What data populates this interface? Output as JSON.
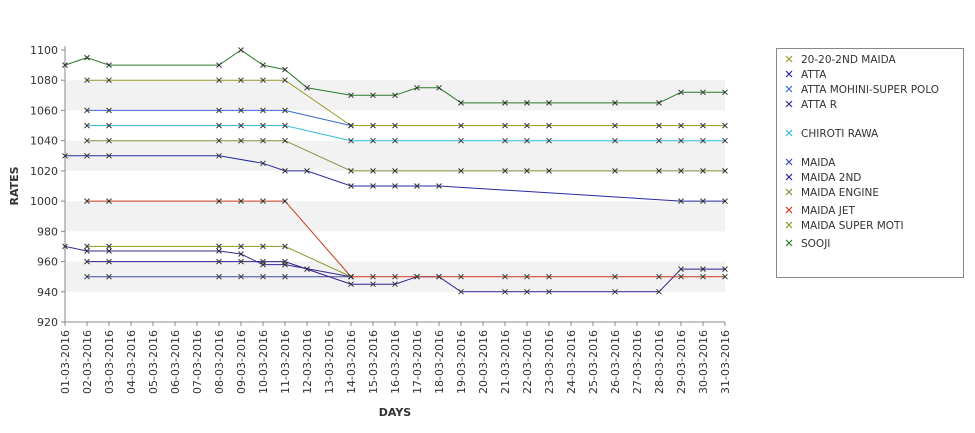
{
  "chart_data": {
    "type": "line",
    "title": "",
    "xlabel": "DAYS",
    "ylabel": "RATES",
    "ylim": [
      920,
      1100
    ],
    "yticks": [
      920,
      940,
      960,
      980,
      1000,
      1020,
      1040,
      1060,
      1080,
      1100
    ],
    "grid": "alternating horizontal bands",
    "legend_position": "right",
    "categories": [
      "01-03-2016",
      "02-03-2016",
      "03-03-2016",
      "04-03-2016",
      "05-03-2016",
      "06-03-2016",
      "07-03-2016",
      "08-03-2016",
      "09-03-2016",
      "10-03-2016",
      "11-03-2016",
      "12-03-2016",
      "13-03-2016",
      "14-03-2016",
      "15-03-2016",
      "16-03-2016",
      "17-03-2016",
      "18-03-2016",
      "19-03-2016",
      "20-03-2016",
      "21-03-2016",
      "22-03-2016",
      "23-03-2016",
      "24-03-2016",
      "25-03-2016",
      "26-03-2016",
      "27-03-2016",
      "28-03-2016",
      "29-03-2016",
      "30-03-2016",
      "31-03-2016"
    ],
    "series": [
      {
        "name": "20-20-2ND MAIDA",
        "color": "#9a9a2a",
        "points": [
          [
            "02-03-2016",
            1080
          ],
          [
            "03-03-2016",
            1080
          ],
          [
            "08-03-2016",
            1080
          ],
          [
            "09-03-2016",
            1080
          ],
          [
            "10-03-2016",
            1080
          ],
          [
            "11-03-2016",
            1080
          ],
          [
            "14-03-2016",
            1050
          ],
          [
            "15-03-2016",
            1050
          ],
          [
            "16-03-2016",
            1050
          ],
          [
            "19-03-2016",
            1050
          ],
          [
            "21-03-2016",
            1050
          ],
          [
            "22-03-2016",
            1050
          ],
          [
            "23-03-2016",
            1050
          ],
          [
            "26-03-2016",
            1050
          ],
          [
            "28-03-2016",
            1050
          ],
          [
            "29-03-2016",
            1050
          ],
          [
            "30-03-2016",
            1050
          ],
          [
            "31-03-2016",
            1050
          ]
        ]
      },
      {
        "name": "ATTA",
        "color": "#2a2aa0",
        "points": [
          [
            "01-03-2016",
            1030
          ],
          [
            "02-03-2016",
            1030
          ],
          [
            "03-03-2016",
            1030
          ],
          [
            "08-03-2016",
            1030
          ],
          [
            "10-03-2016",
            1025
          ],
          [
            "11-03-2016",
            1020
          ],
          [
            "12-03-2016",
            1020
          ],
          [
            "14-03-2016",
            1010
          ],
          [
            "15-03-2016",
            1010
          ],
          [
            "16-03-2016",
            1010
          ],
          [
            "17-03-2016",
            1010
          ],
          [
            "18-03-2016",
            1010
          ],
          [
            "29-03-2016",
            1000
          ],
          [
            "30-03-2016",
            1000
          ],
          [
            "31-03-2016",
            1000
          ]
        ]
      },
      {
        "name": "ATTA MOHINI-SUPER POLO",
        "color": "#3a6ad0",
        "points": [
          [
            "02-03-2016",
            1060
          ],
          [
            "03-03-2016",
            1060
          ],
          [
            "08-03-2016",
            1060
          ],
          [
            "09-03-2016",
            1060
          ],
          [
            "10-03-2016",
            1060
          ],
          [
            "11-03-2016",
            1060
          ],
          [
            "14-03-2016",
            1050
          ]
        ]
      },
      {
        "name": "ATTA R",
        "color": "#3a2a90",
        "points": [
          [
            "01-03-2016",
            970
          ],
          [
            "02-03-2016",
            967
          ],
          [
            "03-03-2016",
            967
          ],
          [
            "08-03-2016",
            967
          ],
          [
            "09-03-2016",
            965
          ],
          [
            "10-03-2016",
            958
          ],
          [
            "11-03-2016",
            958
          ],
          [
            "14-03-2016",
            950
          ]
        ]
      },
      {
        "name": "CHIROTI RAWA",
        "color": "#35b8d8",
        "points": [
          [
            "02-03-2016",
            1050
          ],
          [
            "03-03-2016",
            1050
          ],
          [
            "08-03-2016",
            1050
          ],
          [
            "09-03-2016",
            1050
          ],
          [
            "10-03-2016",
            1050
          ],
          [
            "11-03-2016",
            1050
          ],
          [
            "14-03-2016",
            1040
          ],
          [
            "15-03-2016",
            1040
          ],
          [
            "16-03-2016",
            1040
          ],
          [
            "19-03-2016",
            1040
          ],
          [
            "21-03-2016",
            1040
          ],
          [
            "22-03-2016",
            1040
          ],
          [
            "23-03-2016",
            1040
          ],
          [
            "26-03-2016",
            1040
          ],
          [
            "28-03-2016",
            1040
          ],
          [
            "29-03-2016",
            1040
          ],
          [
            "30-03-2016",
            1040
          ],
          [
            "31-03-2016",
            1040
          ]
        ]
      },
      {
        "name": "MAIDA",
        "color": "#3a4aa0",
        "points": [
          [
            "02-03-2016",
            950
          ],
          [
            "03-03-2016",
            950
          ],
          [
            "08-03-2016",
            950
          ],
          [
            "09-03-2016",
            950
          ],
          [
            "10-03-2016",
            950
          ],
          [
            "11-03-2016",
            950
          ],
          [
            "14-03-2016",
            950
          ]
        ]
      },
      {
        "name": "MAIDA 2ND",
        "color": "#3a1a90",
        "points": [
          [
            "02-03-2016",
            960
          ],
          [
            "03-03-2016",
            960
          ],
          [
            "08-03-2016",
            960
          ],
          [
            "09-03-2016",
            960
          ],
          [
            "10-03-2016",
            960
          ],
          [
            "11-03-2016",
            960
          ],
          [
            "12-03-2016",
            955
          ],
          [
            "14-03-2016",
            945
          ],
          [
            "15-03-2016",
            945
          ],
          [
            "16-03-2016",
            945
          ],
          [
            "17-03-2016",
            950
          ],
          [
            "18-03-2016",
            950
          ],
          [
            "19-03-2016",
            940
          ],
          [
            "21-03-2016",
            940
          ],
          [
            "22-03-2016",
            940
          ],
          [
            "23-03-2016",
            940
          ],
          [
            "26-03-2016",
            940
          ],
          [
            "28-03-2016",
            940
          ],
          [
            "29-03-2016",
            955
          ],
          [
            "30-03-2016",
            955
          ],
          [
            "31-03-2016",
            955
          ]
        ]
      },
      {
        "name": "MAIDA ENGINE",
        "color": "#8a8a3a",
        "points": [
          [
            "02-03-2016",
            1040
          ],
          [
            "03-03-2016",
            1040
          ],
          [
            "08-03-2016",
            1040
          ],
          [
            "09-03-2016",
            1040
          ],
          [
            "10-03-2016",
            1040
          ],
          [
            "11-03-2016",
            1040
          ],
          [
            "14-03-2016",
            1020
          ],
          [
            "15-03-2016",
            1020
          ],
          [
            "16-03-2016",
            1020
          ],
          [
            "19-03-2016",
            1020
          ],
          [
            "21-03-2016",
            1020
          ],
          [
            "22-03-2016",
            1020
          ],
          [
            "23-03-2016",
            1020
          ],
          [
            "26-03-2016",
            1020
          ],
          [
            "28-03-2016",
            1020
          ],
          [
            "29-03-2016",
            1020
          ],
          [
            "30-03-2016",
            1020
          ],
          [
            "31-03-2016",
            1020
          ]
        ]
      },
      {
        "name": "MAIDA JET",
        "color": "#c83a1a",
        "points": [
          [
            "02-03-2016",
            1000
          ],
          [
            "03-03-2016",
            1000
          ],
          [
            "08-03-2016",
            1000
          ],
          [
            "09-03-2016",
            1000
          ],
          [
            "10-03-2016",
            1000
          ],
          [
            "11-03-2016",
            1000
          ],
          [
            "14-03-2016",
            950
          ],
          [
            "15-03-2016",
            950
          ],
          [
            "16-03-2016",
            950
          ],
          [
            "17-03-2016",
            950
          ],
          [
            "18-03-2016",
            950
          ],
          [
            "19-03-2016",
            950
          ],
          [
            "21-03-2016",
            950
          ],
          [
            "22-03-2016",
            950
          ],
          [
            "23-03-2016",
            950
          ],
          [
            "26-03-2016",
            950
          ],
          [
            "28-03-2016",
            950
          ],
          [
            "29-03-2016",
            950
          ],
          [
            "30-03-2016",
            950
          ],
          [
            "31-03-2016",
            950
          ]
        ]
      },
      {
        "name": "MAIDA SUPER MOTI",
        "color": "#8a9a2a",
        "points": [
          [
            "02-03-2016",
            970
          ],
          [
            "03-03-2016",
            970
          ],
          [
            "08-03-2016",
            970
          ],
          [
            "09-03-2016",
            970
          ],
          [
            "10-03-2016",
            970
          ],
          [
            "11-03-2016",
            970
          ],
          [
            "14-03-2016",
            950
          ]
        ]
      },
      {
        "name": "SOOJI",
        "color": "#2a7a2a",
        "points": [
          [
            "01-03-2016",
            1090
          ],
          [
            "02-03-2016",
            1095
          ],
          [
            "03-03-2016",
            1090
          ],
          [
            "08-03-2016",
            1090
          ],
          [
            "09-03-2016",
            1100
          ],
          [
            "10-03-2016",
            1090
          ],
          [
            "11-03-2016",
            1087
          ],
          [
            "12-03-2016",
            1075
          ],
          [
            "14-03-2016",
            1070
          ],
          [
            "15-03-2016",
            1070
          ],
          [
            "16-03-2016",
            1070
          ],
          [
            "17-03-2016",
            1075
          ],
          [
            "18-03-2016",
            1075
          ],
          [
            "19-03-2016",
            1065
          ],
          [
            "21-03-2016",
            1065
          ],
          [
            "22-03-2016",
            1065
          ],
          [
            "23-03-2016",
            1065
          ],
          [
            "26-03-2016",
            1065
          ],
          [
            "28-03-2016",
            1065
          ],
          [
            "29-03-2016",
            1072
          ],
          [
            "30-03-2016",
            1072
          ],
          [
            "31-03-2016",
            1072
          ]
        ]
      }
    ]
  }
}
